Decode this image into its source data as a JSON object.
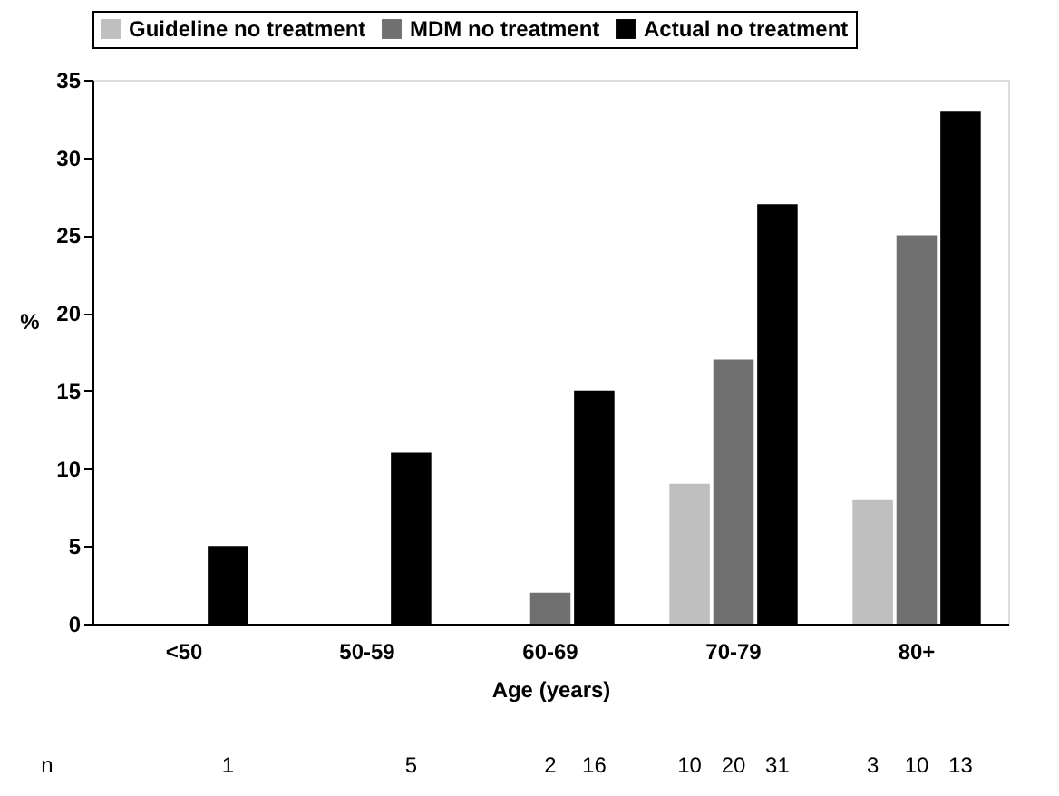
{
  "chart_data": {
    "type": "bar",
    "xlabel": "Age (years)",
    "ylabel": "%",
    "categories": [
      "<50",
      "50-59",
      "60-69",
      "70-79",
      "80+"
    ],
    "series": [
      {
        "name": "Guideline no treatment",
        "color": "#bfbfbf",
        "values": [
          0,
          0,
          0,
          9,
          8
        ]
      },
      {
        "name": "MDM no treatment",
        "color": "#707070",
        "values": [
          0,
          0,
          2,
          17,
          25
        ]
      },
      {
        "name": "Actual no treatment",
        "color": "#000000",
        "values": [
          5,
          11,
          15,
          27,
          33
        ]
      }
    ],
    "ylim": [
      0,
      35
    ],
    "yticks": [
      0,
      5,
      10,
      15,
      20,
      25,
      30,
      35
    ],
    "grid": false,
    "legend": "top",
    "annotations": [
      "n",
      "1",
      "5",
      "2",
      "16",
      "10",
      "20",
      "31",
      "3",
      "10",
      "13"
    ]
  }
}
